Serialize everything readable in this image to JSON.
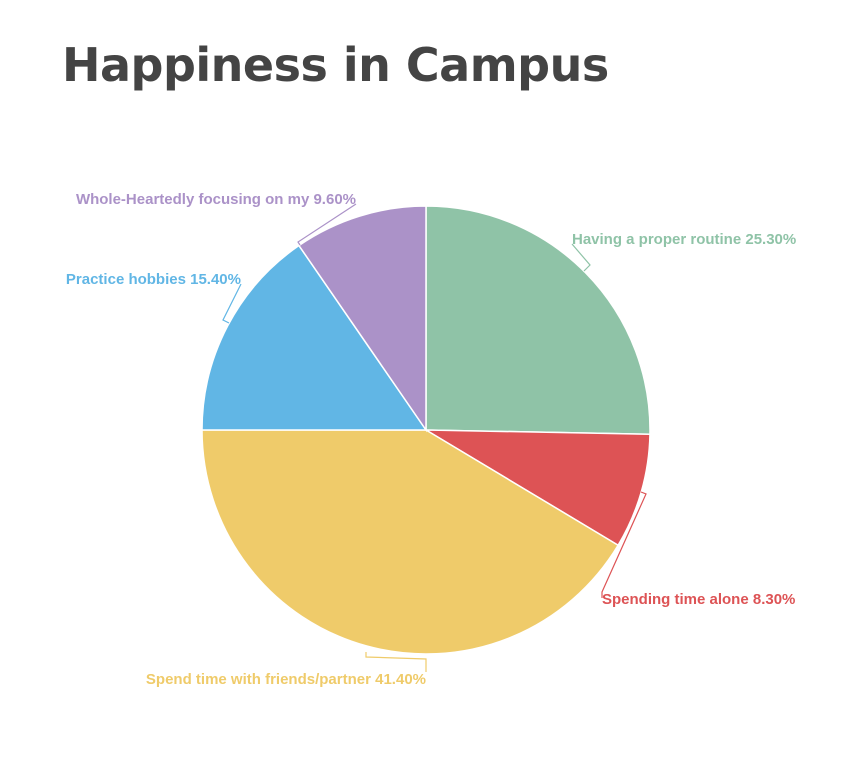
{
  "title": "Happiness in Campus",
  "chart_data": {
    "type": "pie",
    "title": "Happiness in Campus",
    "start_angle_deg": 0,
    "direction": "clockwise",
    "slices": [
      {
        "label": "Having a proper routine",
        "value": 25.3,
        "display": "Having a proper routine 25.30%",
        "color": "#8fc3a7"
      },
      {
        "label": "Spending time alone",
        "value": 8.3,
        "display": "Spending time alone 8.30%",
        "color": "#dd5355"
      },
      {
        "label": "Spend time with friends/partner",
        "value": 41.4,
        "display": "Spend time with friends/partner 41.40%",
        "color": "#efcb6a"
      },
      {
        "label": "Practice hobbies",
        "value": 15.4,
        "display": "Practice hobbies 15.40%",
        "color": "#61b6e5"
      },
      {
        "label": "Whole-Heartedly focusing on my",
        "value": 9.6,
        "display": "Whole-Heartedly focusing on my 9.60%",
        "color": "#ab92c8"
      }
    ]
  }
}
